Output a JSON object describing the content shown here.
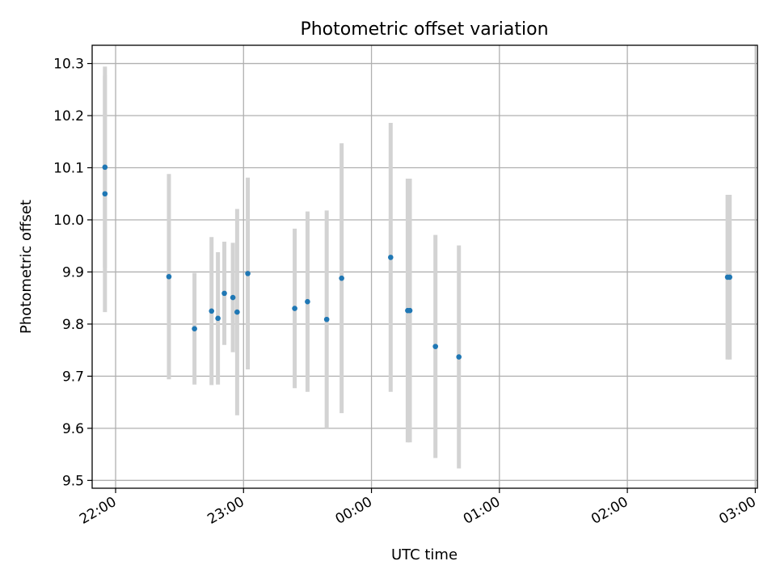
{
  "colors": {
    "point": "#1f77b4",
    "errorbar": "#d3d3d3",
    "grid": "#b0b0b0",
    "axes": "#000000"
  },
  "chart_data": {
    "type": "scatter",
    "title": "Photometric offset variation",
    "xlabel": "UTC time",
    "ylabel": "Photometric offset",
    "x_axis_type": "time",
    "x_ticks": [
      "22:00",
      "23:00",
      "00:00",
      "01:00",
      "02:00",
      "03:00"
    ],
    "y_ticks": [
      "9.5",
      "9.6",
      "9.7",
      "9.8",
      "9.9",
      "10.0",
      "10.1",
      "10.2",
      "10.3"
    ],
    "xlim": [
      "21:49",
      "03:01"
    ],
    "ylim": [
      9.485,
      10.335
    ],
    "grid": true,
    "legend": "none",
    "marker": "dot",
    "errorbars": "vertical",
    "points": [
      {
        "x": "21:55",
        "y": 10.101,
        "err": 0.193
      },
      {
        "x": "21:55",
        "y": 10.05,
        "err": 0.227
      },
      {
        "x": "22:25",
        "y": 9.891,
        "err": 0.197
      },
      {
        "x": "22:37",
        "y": 9.791,
        "err": 0.107
      },
      {
        "x": "22:45",
        "y": 9.825,
        "err": 0.142
      },
      {
        "x": "22:48",
        "y": 9.811,
        "err": 0.127
      },
      {
        "x": "22:51",
        "y": 9.859,
        "err": 0.099
      },
      {
        "x": "22:55",
        "y": 9.851,
        "err": 0.105
      },
      {
        "x": "22:57",
        "y": 9.823,
        "err": 0.198
      },
      {
        "x": "23:02",
        "y": 9.897,
        "err": 0.184
      },
      {
        "x": "23:24",
        "y": 9.83,
        "err": 0.153
      },
      {
        "x": "23:30",
        "y": 9.843,
        "err": 0.173
      },
      {
        "x": "23:39",
        "y": 9.809,
        "err": 0.209
      },
      {
        "x": "23:46",
        "y": 9.888,
        "err": 0.259
      },
      {
        "x": "00:09",
        "y": 9.928,
        "err": 0.258
      },
      {
        "x": "00:17",
        "y": 9.826,
        "err": 0.253
      },
      {
        "x": "00:18",
        "y": 9.826,
        "err": 0.253
      },
      {
        "x": "00:30",
        "y": 9.757,
        "err": 0.214
      },
      {
        "x": "00:41",
        "y": 9.737,
        "err": 0.214
      },
      {
        "x": "02:47",
        "y": 9.89,
        "err": 0.158
      },
      {
        "x": "02:48",
        "y": 9.89,
        "err": 0.158
      }
    ]
  }
}
